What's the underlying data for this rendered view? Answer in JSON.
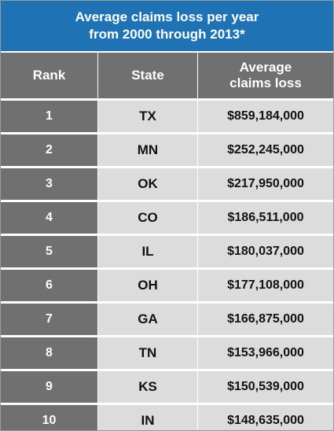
{
  "title_line1": "Average claims loss per year",
  "title_line2": "from 2000 through 2013*",
  "colors": {
    "title_bg": "#1f73b4",
    "rank_bg": "#707070",
    "cell_bg": "#dcdcdc"
  },
  "chart_data": {
    "type": "table",
    "title": "Average claims loss per year from 2000 through 2013*",
    "columns": [
      "Rank",
      "State",
      "Average claims loss"
    ],
    "rows": [
      {
        "rank": "1",
        "state": "TX",
        "loss": "$859,184,000"
      },
      {
        "rank": "2",
        "state": "MN",
        "loss": "$252,245,000"
      },
      {
        "rank": "3",
        "state": "OK",
        "loss": "$217,950,000"
      },
      {
        "rank": "4",
        "state": "CO",
        "loss": "$186,511,000"
      },
      {
        "rank": "5",
        "state": "IL",
        "loss": "$180,037,000"
      },
      {
        "rank": "6",
        "state": "OH",
        "loss": "$177,108,000"
      },
      {
        "rank": "7",
        "state": "GA",
        "loss": "$166,875,000"
      },
      {
        "rank": "8",
        "state": "TN",
        "loss": "$153,966,000"
      },
      {
        "rank": "9",
        "state": "KS",
        "loss": "$150,539,000"
      },
      {
        "rank": "10",
        "state": "IN",
        "loss": "$148,635,000"
      }
    ]
  }
}
